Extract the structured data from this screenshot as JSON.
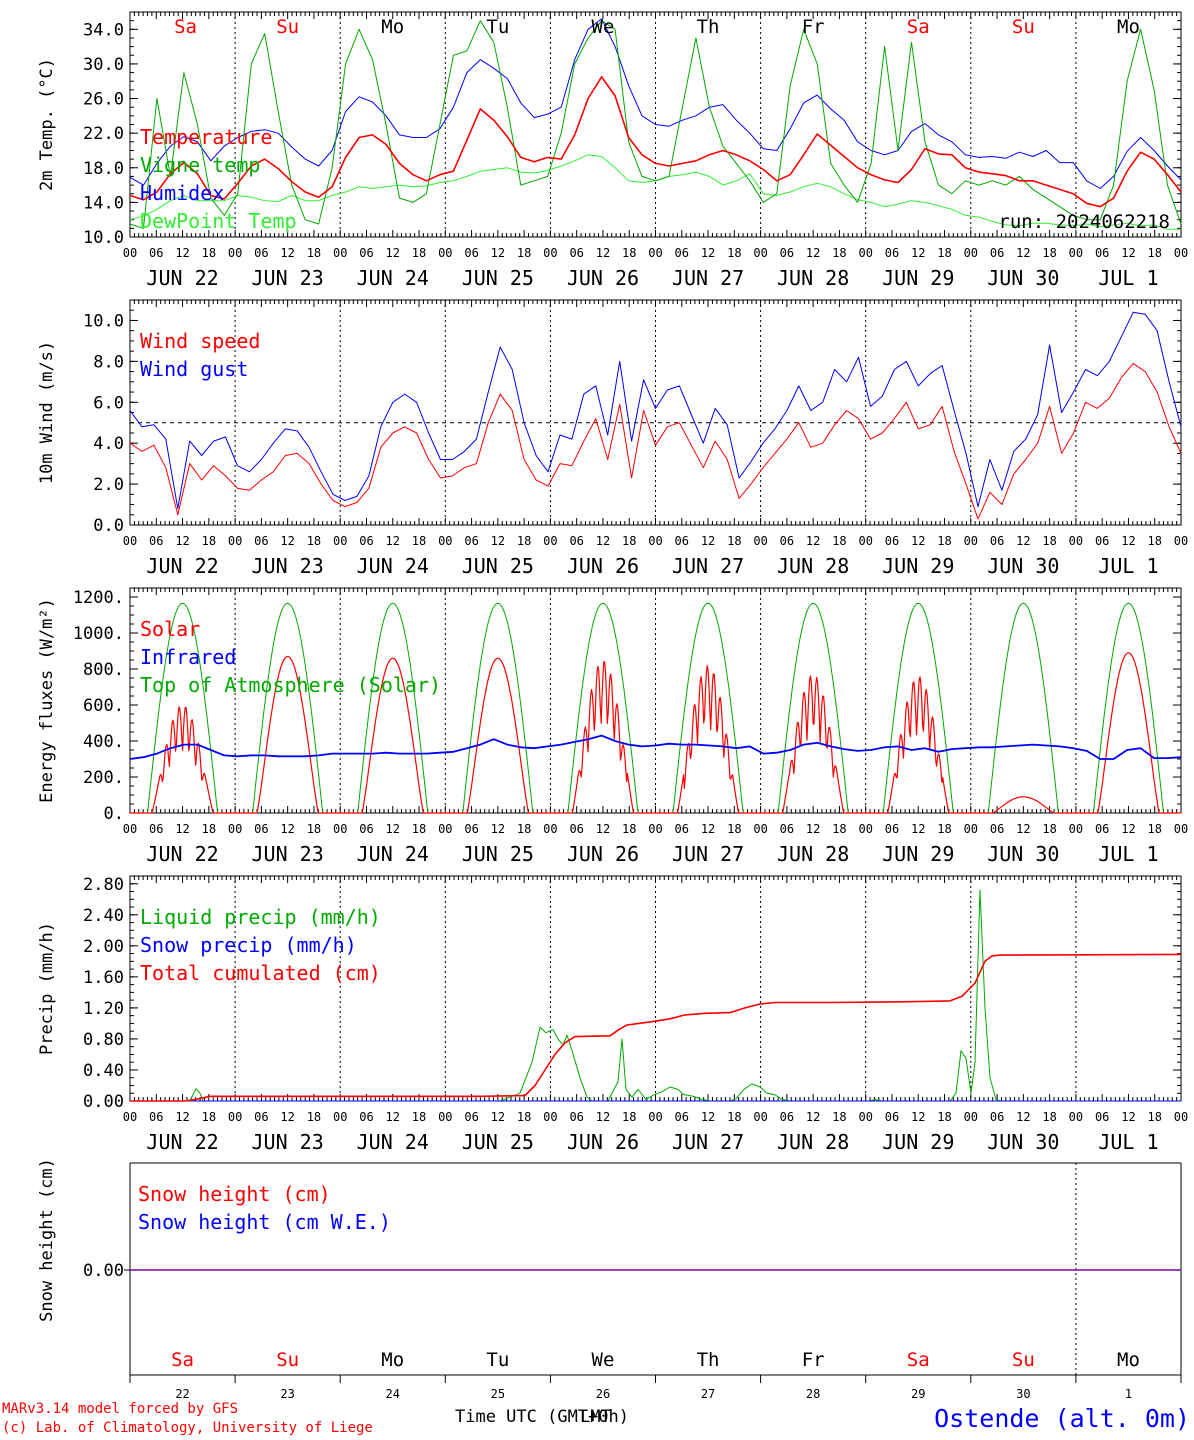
{
  "chart_data": [
    {
      "type": "line",
      "ylabel": "2m Temp. (°C)",
      "ylim": [
        10,
        36
      ],
      "yticks": [
        "10.0",
        "14.0",
        "18.0",
        "22.0",
        "26.0",
        "30.0",
        "34.0"
      ],
      "day_names": [
        "Sa",
        "Su",
        "Mo",
        "Tu",
        "We",
        "Th",
        "Fr",
        "Sa",
        "Su",
        "Mo"
      ],
      "day_name_colors": [
        "#ff0000",
        "#ff0000",
        "#000000",
        "#000000",
        "#000000",
        "#000000",
        "#000000",
        "#ff0000",
        "#ff0000",
        "#000000"
      ],
      "run_label": "run: 2024062218",
      "reference_line": null,
      "series": [
        {
          "name": "Temperature",
          "color": "#ff0000",
          "width": 1.6,
          "values": [
            14.8,
            14.3,
            15.2,
            17.3,
            18.6,
            17.3,
            14.8,
            14.4,
            16.2,
            18.2,
            19.0,
            17.9,
            16.4,
            15.2,
            14.6,
            15.8,
            19.2,
            21.5,
            21.8,
            20.7,
            18.5,
            17.2,
            16.5,
            17.2,
            17.6,
            21.2,
            24.8,
            23.5,
            21.6,
            19.2,
            18.7,
            19.2,
            19.0,
            21.8,
            26.0,
            28.5,
            26.3,
            21.5,
            19.5,
            18.5,
            18.2,
            18.5,
            18.8,
            19.5,
            20.0,
            19.5,
            18.8,
            17.8,
            16.5,
            17.2,
            19.5,
            21.9,
            20.6,
            19.3,
            18.0,
            17.2,
            16.6,
            16.3,
            17.8,
            20.2,
            19.6,
            19.5,
            18.0,
            17.5,
            17.3,
            17.1,
            16.5,
            16.5,
            16.0,
            15.5,
            15.0,
            13.9,
            13.5,
            14.5,
            17.6,
            19.8,
            19.0,
            17.2,
            15.2
          ]
        },
        {
          "name": "Vigne temp",
          "color": "#00aa00",
          "width": 1,
          "values": [
            11.5,
            11.0,
            26.0,
            17.0,
            29.0,
            23.0,
            14.5,
            12.5,
            15.0,
            30.0,
            33.5,
            24.5,
            16.0,
            12.0,
            11.5,
            18.0,
            30.0,
            34.0,
            30.5,
            23.0,
            14.5,
            14.0,
            15.0,
            23.0,
            31.0,
            31.5,
            35.0,
            32.5,
            25.0,
            16.0,
            16.5,
            17.0,
            22.0,
            30.0,
            33.0,
            35.0,
            34.0,
            21.0,
            17.0,
            16.5,
            17.0,
            25.0,
            33.0,
            25.0,
            20.5,
            18.5,
            16.5,
            14.0,
            15.0,
            27.5,
            34.0,
            30.0,
            18.5,
            16.0,
            14.0,
            18.5,
            32.0,
            20.0,
            32.5,
            21.0,
            16.0,
            15.0,
            16.5,
            16.0,
            16.5,
            16.0,
            17.0,
            15.5,
            14.5,
            13.5,
            12.5,
            12.0,
            12.0,
            16.0,
            28.0,
            34.0,
            27.0,
            16.0,
            11.5
          ]
        },
        {
          "name": "Humidex",
          "color": "#0000ff",
          "width": 1,
          "values": [
            16.9,
            16.0,
            18.5,
            20.5,
            21.6,
            21.0,
            18.8,
            20.5,
            21.5,
            22.2,
            22.4,
            22.0,
            20.4,
            19.0,
            18.2,
            20.0,
            24.5,
            26.2,
            25.6,
            24.0,
            21.8,
            21.5,
            21.5,
            22.5,
            25.0,
            29.0,
            30.5,
            29.5,
            28.3,
            25.5,
            23.8,
            24.2,
            25.0,
            30.5,
            34.0,
            35.2,
            32.0,
            27.5,
            24.0,
            23.0,
            22.8,
            23.5,
            24.0,
            25.0,
            25.3,
            23.5,
            22.0,
            20.2,
            20.0,
            22.5,
            25.5,
            26.4,
            24.8,
            23.5,
            21.0,
            20.0,
            19.5,
            20.0,
            22.2,
            23.1,
            21.8,
            21.0,
            19.5,
            19.2,
            19.3,
            19.1,
            19.8,
            19.3,
            20.0,
            18.6,
            18.6,
            16.5,
            15.6,
            17.0,
            19.9,
            21.5,
            20.0,
            18.2,
            16.6
          ]
        },
        {
          "name": "DewPoint Temp",
          "color": "#33ee33",
          "width": 1,
          "values": [
            12.0,
            12.4,
            13.2,
            14.2,
            14.8,
            14.2,
            14.2,
            14.2,
            14.8,
            14.6,
            14.2,
            14.1,
            14.8,
            14.2,
            14.2,
            14.8,
            15.2,
            15.8,
            15.6,
            15.8,
            16.0,
            15.8,
            15.9,
            16.3,
            16.5,
            17.0,
            17.6,
            17.8,
            18.0,
            17.5,
            17.4,
            17.7,
            18.2,
            18.8,
            19.5,
            19.3,
            18.0,
            16.5,
            16.3,
            16.5,
            17.0,
            17.2,
            17.5,
            17.0,
            16.0,
            16.5,
            17.3,
            15.0,
            14.8,
            15.2,
            15.8,
            16.2,
            15.8,
            15.0,
            14.3,
            14.0,
            13.5,
            13.8,
            14.2,
            14.0,
            13.6,
            13.2,
            12.5,
            12.3,
            11.8,
            11.4,
            11.3,
            11.6,
            11.6,
            11.4,
            11.3,
            11.5,
            11.2,
            11.4,
            11.6,
            11.3,
            11.4,
            10.9,
            10.9
          ]
        }
      ]
    },
    {
      "type": "line",
      "ylabel": "10m Wind (m/s)",
      "ylim": [
        0,
        11
      ],
      "yticks": [
        "0.0",
        "2.0",
        "4.0",
        "6.0",
        "8.0",
        "10.0"
      ],
      "reference_line": 5,
      "series": [
        {
          "name": "Wind speed",
          "color": "#ff0000",
          "width": 1,
          "values": [
            4.0,
            3.6,
            3.9,
            2.8,
            0.5,
            3.0,
            2.2,
            2.9,
            2.4,
            1.8,
            1.7,
            2.2,
            2.6,
            3.4,
            3.5,
            3.0,
            2.0,
            1.2,
            0.9,
            1.1,
            1.8,
            3.8,
            4.5,
            4.8,
            4.5,
            3.2,
            2.3,
            2.4,
            2.8,
            3.0,
            5.0,
            6.4,
            5.6,
            3.2,
            2.2,
            1.9,
            3.0,
            2.9,
            4.1,
            5.2,
            3.2,
            5.9,
            2.3,
            5.6,
            3.9,
            4.8,
            5.0,
            3.9,
            2.8,
            4.1,
            3.2,
            1.3,
            2.0,
            2.8,
            3.5,
            4.2,
            5.0,
            3.8,
            4.0,
            4.9,
            5.6,
            5.2,
            4.2,
            4.5,
            5.2,
            6.0,
            4.7,
            4.9,
            5.8,
            3.6,
            2.0,
            0.3,
            1.6,
            1.0,
            2.5,
            3.2,
            4.0,
            5.8,
            3.5,
            4.5,
            6.0,
            5.7,
            6.2,
            7.2,
            7.9,
            7.5,
            6.5,
            4.8,
            3.5
          ]
        },
        {
          "name": "Wind gust",
          "color": "#0000ff",
          "width": 1,
          "values": [
            5.6,
            4.8,
            4.9,
            4.2,
            0.8,
            4.1,
            3.4,
            4.1,
            4.3,
            2.9,
            2.6,
            3.2,
            4.0,
            4.7,
            4.6,
            3.8,
            2.6,
            1.5,
            1.2,
            1.4,
            2.4,
            4.8,
            6.0,
            6.4,
            6.0,
            4.5,
            3.2,
            3.2,
            3.6,
            4.2,
            6.5,
            8.7,
            7.6,
            5.0,
            3.4,
            2.6,
            4.4,
            4.2,
            6.4,
            6.8,
            4.4,
            8.0,
            4.1,
            7.1,
            5.7,
            6.6,
            6.8,
            5.4,
            4.0,
            5.7,
            4.9,
            2.3,
            3.1,
            4.0,
            4.7,
            5.6,
            6.8,
            5.6,
            6.0,
            7.6,
            7.0,
            8.2,
            5.8,
            6.3,
            7.6,
            8.0,
            6.8,
            7.4,
            7.8,
            5.6,
            3.5,
            0.9,
            3.2,
            1.7,
            3.6,
            4.2,
            5.4,
            8.8,
            5.5,
            6.5,
            7.6,
            7.3,
            8.0,
            9.2,
            10.4,
            10.3,
            9.5,
            7.0,
            4.8
          ]
        }
      ]
    },
    {
      "type": "line",
      "ylabel": "Energy fluxes (W/m²)",
      "ylim": [
        0,
        1250
      ],
      "yticks": [
        "0.",
        "200.",
        "400.",
        "600.",
        "800.",
        "1000.",
        "1200."
      ],
      "reference_line": null,
      "daily_peaks": {
        "Solar": [
          600,
          870,
          860,
          860,
          850,
          820,
          770,
          760,
          90,
          890
        ],
        "Top of Atmosphere (Solar)": [
          1165,
          1165,
          1165,
          1165,
          1165,
          1165,
          1165,
          1165,
          1165,
          1165
        ]
      },
      "series": [
        {
          "name": "Solar",
          "color": "#ff0000",
          "width": 1.2
        },
        {
          "name": "Infrared",
          "color": "#0000ff",
          "width": 1.8,
          "values": [
            300,
            310,
            330,
            360,
            380,
            380,
            350,
            320,
            315,
            320,
            320,
            315,
            315,
            315,
            320,
            330,
            330,
            330,
            330,
            335,
            330,
            330,
            330,
            335,
            340,
            360,
            380,
            410,
            380,
            365,
            360,
            370,
            380,
            395,
            410,
            430,
            400,
            380,
            370,
            375,
            385,
            380,
            380,
            375,
            370,
            360,
            370,
            330,
            335,
            350,
            380,
            390,
            370,
            355,
            345,
            350,
            365,
            370,
            350,
            360,
            340,
            355,
            360,
            365,
            365,
            370,
            375,
            380,
            375,
            370,
            360,
            345,
            300,
            300,
            350,
            360,
            305,
            305,
            310
          ]
        },
        {
          "name": "Top of Atmosphere (Solar)",
          "color": "#00aa00",
          "width": 1
        }
      ]
    },
    {
      "type": "line",
      "ylabel": "Precip (mm/h)",
      "ylim": [
        0,
        2.9
      ],
      "yticks": [
        "0.00",
        "0.40",
        "0.80",
        "1.20",
        "1.60",
        "2.00",
        "2.40",
        "2.80"
      ],
      "reference_line": null,
      "series": [
        {
          "name": "Liquid precip (mm/h)",
          "color": "#00aa00",
          "width": 1
        },
        {
          "name": "Snow precip (mm/h)",
          "color": "#0000ff",
          "width": 1
        },
        {
          "name": "Total cumulated (cm)",
          "color": "#ff0000",
          "width": 1.6
        }
      ],
      "liquid_points": [
        [
          0,
          0
        ],
        [
          60,
          0
        ],
        [
          66,
          0.16
        ],
        [
          70,
          0.1
        ],
        [
          73,
          0
        ],
        [
          370,
          0
        ],
        [
          390,
          0.1
        ],
        [
          402,
          0.5
        ],
        [
          410,
          0.95
        ],
        [
          416,
          0.88
        ],
        [
          423,
          0.92
        ],
        [
          428,
          0.8
        ],
        [
          433,
          0.72
        ],
        [
          437,
          0.85
        ],
        [
          442,
          0.65
        ],
        [
          450,
          0.3
        ],
        [
          457,
          0.05
        ],
        [
          462,
          0
        ],
        [
          478,
          0
        ],
        [
          488,
          0.25
        ],
        [
          492,
          0.8
        ],
        [
          496,
          0.15
        ],
        [
          502,
          0.05
        ],
        [
          508,
          0.15
        ],
        [
          516,
          0.02
        ],
        [
          524,
          0.08
        ],
        [
          532,
          0.12
        ],
        [
          540,
          0.18
        ],
        [
          548,
          0.15
        ],
        [
          554,
          0.08
        ],
        [
          560,
          0.07
        ],
        [
          566,
          0.05
        ],
        [
          572,
          0.02
        ],
        [
          580,
          0
        ],
        [
          600,
          0
        ],
        [
          606,
          0.03
        ],
        [
          614,
          0.15
        ],
        [
          622,
          0.22
        ],
        [
          630,
          0.18
        ],
        [
          637,
          0.1
        ],
        [
          645,
          0.08
        ],
        [
          652,
          0.02
        ],
        [
          660,
          0
        ],
        [
          740,
          0
        ],
        [
          745,
          0.02
        ],
        [
          752,
          0
        ],
        [
          820,
          0
        ],
        [
          826,
          0.1
        ],
        [
          831,
          0.65
        ],
        [
          836,
          0.55
        ],
        [
          841,
          0.1
        ],
        [
          845,
          0.5
        ],
        [
          850,
          2.72
        ],
        [
          855,
          1.2
        ],
        [
          860,
          0.3
        ],
        [
          866,
          0.02
        ],
        [
          870,
          0
        ],
        [
          1051,
          0
        ]
      ],
      "cumulated_points": [
        [
          0,
          0
        ],
        [
          55,
          0
        ],
        [
          66,
          0.02
        ],
        [
          80,
          0.06
        ],
        [
          200,
          0.06
        ],
        [
          350,
          0.06
        ],
        [
          395,
          0.07
        ],
        [
          405,
          0.2
        ],
        [
          415,
          0.4
        ],
        [
          425,
          0.6
        ],
        [
          435,
          0.75
        ],
        [
          445,
          0.83
        ],
        [
          480,
          0.84
        ],
        [
          490,
          0.93
        ],
        [
          497,
          0.98
        ],
        [
          520,
          1.02
        ],
        [
          540,
          1.06
        ],
        [
          555,
          1.11
        ],
        [
          575,
          1.13
        ],
        [
          600,
          1.14
        ],
        [
          615,
          1.2
        ],
        [
          630,
          1.25
        ],
        [
          645,
          1.27
        ],
        [
          700,
          1.27
        ],
        [
          780,
          1.28
        ],
        [
          820,
          1.29
        ],
        [
          832,
          1.35
        ],
        [
          845,
          1.52
        ],
        [
          855,
          1.8
        ],
        [
          862,
          1.87
        ],
        [
          870,
          1.88
        ],
        [
          1051,
          1.89
        ]
      ]
    },
    {
      "type": "line",
      "ylabel": "Snow height (cm)",
      "yticks": [
        "0.00"
      ],
      "series": [
        {
          "name": "Snow height (cm)",
          "color": "#ff0000",
          "value": 0
        },
        {
          "name": "Snow height (cm W.E.)",
          "color": "#0000ff",
          "value": 0
        }
      ]
    }
  ],
  "x_axis": {
    "hour_ticks": [
      "00",
      "06",
      "12",
      "18"
    ],
    "final_tick": "00",
    "dates": [
      "JUN 22",
      "JUN 23",
      "JUN 24",
      "JUN 25",
      "JUN 26",
      "JUN 27",
      "JUN 28",
      "JUN 29",
      "JUN 30",
      "JUL  1"
    ],
    "bottom_day_numbers": [
      "22",
      "23",
      "24",
      "25",
      "26",
      "27",
      "28",
      "29",
      "30",
      "1"
    ],
    "bottom_day_names": [
      "Sa",
      "Su",
      "Mo",
      "Tu",
      "We",
      "Th",
      "Fr",
      "Sa",
      "Su",
      "Mo"
    ],
    "xlabel": "Time UTC (GMT+0h)",
    "xlabel_overlap": "LMT"
  },
  "footer": {
    "model_line": "MARv3.14 model forced by GFS",
    "credit_line": "(c) Lab. of Climatology, University of Liege",
    "station": "Ostende (alt. 0m)",
    "model_color": "#ff0000",
    "station_color": "#0000ff"
  }
}
